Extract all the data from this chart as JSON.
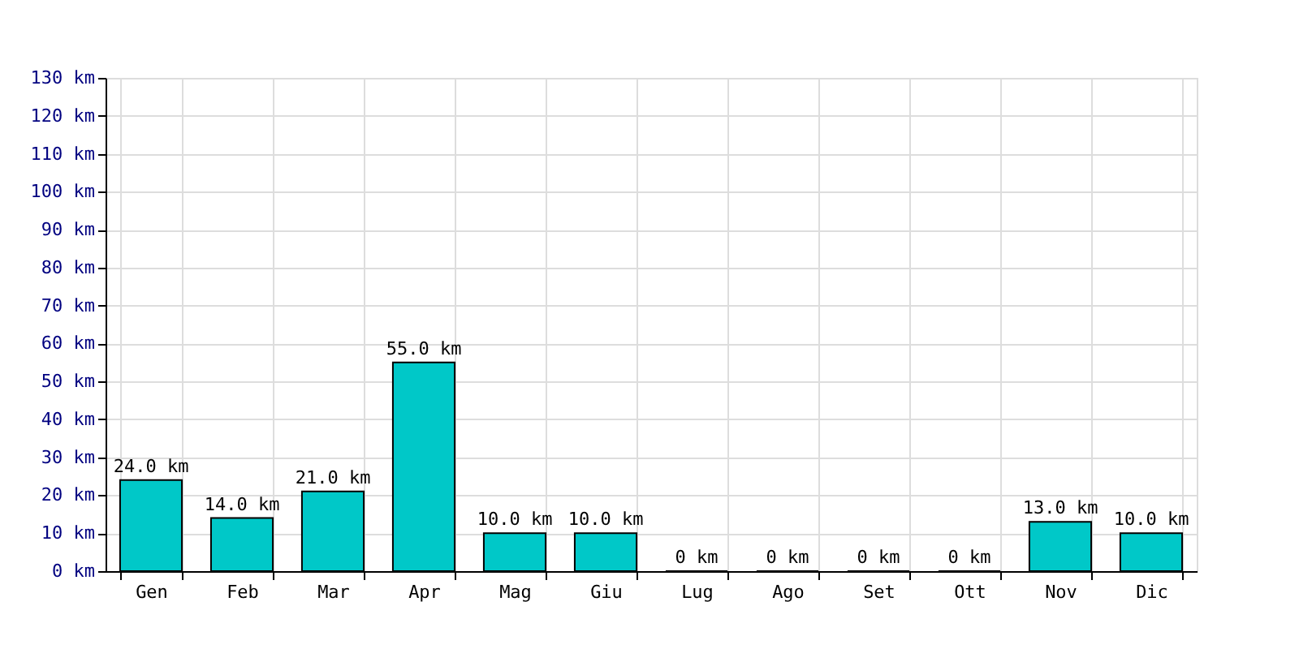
{
  "chart_data": {
    "type": "bar",
    "categories": [
      "Gen",
      "Feb",
      "Mar",
      "Apr",
      "Mag",
      "Giu",
      "Lug",
      "Ago",
      "Set",
      "Ott",
      "Nov",
      "Dic"
    ],
    "values": [
      24,
      14,
      21,
      55,
      10,
      10,
      0,
      0,
      0,
      0,
      13,
      10
    ],
    "value_labels": [
      "24.0 km",
      "14.0 km",
      "21.0 km",
      "55.0 km",
      "10.0 km",
      "10.0 km",
      "0 km",
      "0 km",
      "0 km",
      "0 km",
      "13.0 km",
      "10.0 km"
    ],
    "color": "#00c8c8",
    "ylim": [
      0,
      130
    ],
    "yticks": [
      {
        "value": 0,
        "label": "0 km"
      },
      {
        "value": 10,
        "label": "10 km"
      },
      {
        "value": 20,
        "label": "20 km"
      },
      {
        "value": 30,
        "label": "30 km"
      },
      {
        "value": 40,
        "label": "40 km"
      },
      {
        "value": 50,
        "label": "50 km"
      },
      {
        "value": 60,
        "label": "60 km"
      },
      {
        "value": 70,
        "label": "70 km"
      },
      {
        "value": 80,
        "label": "80 km"
      },
      {
        "value": 90,
        "label": "90 km"
      },
      {
        "value": 100,
        "label": "100 km"
      },
      {
        "value": 110,
        "label": "110 km"
      },
      {
        "value": 120,
        "label": "120 km"
      },
      {
        "value": 130,
        "label": "130 km"
      }
    ],
    "grid": true
  }
}
